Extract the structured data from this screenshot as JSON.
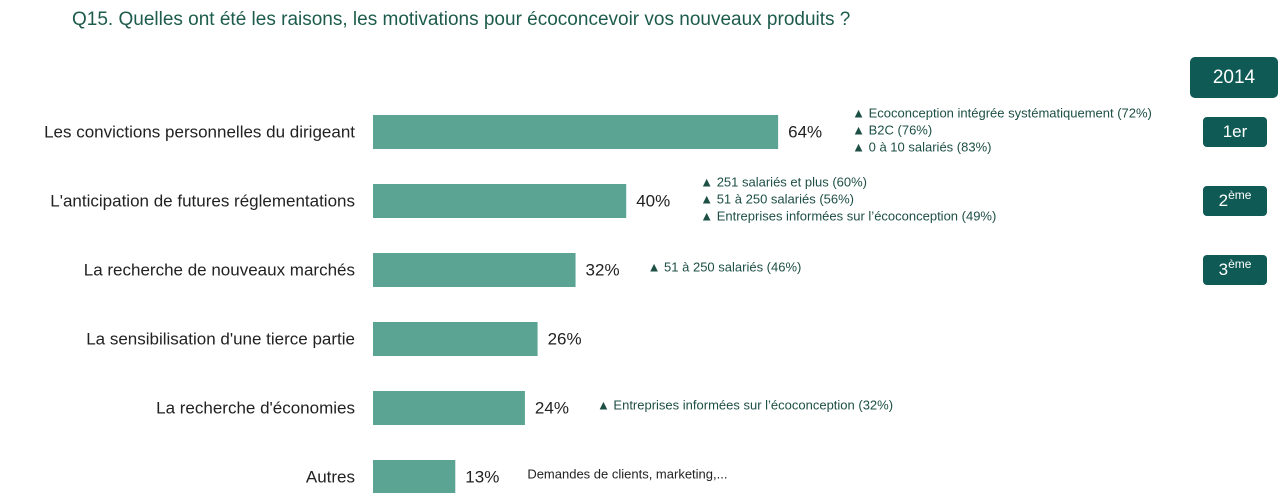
{
  "chart_data": {
    "type": "bar",
    "orientation": "horizontal",
    "title": "Q15. Quelles ont été les raisons, les motivations pour écoconcevoir vos nouveaux produits ?",
    "year": "2014",
    "categories": [
      "Les convictions personnelles du dirigeant",
      "L'anticipation de futures réglementations",
      "La recherche de nouveaux marchés",
      "La sensibilisation d'une tierce partie",
      "La recherche d'économies",
      "Autres"
    ],
    "values": [
      64,
      40,
      32,
      26,
      24,
      13
    ],
    "value_labels": [
      "64%",
      "40%",
      "32%",
      "26%",
      "24%",
      "13%"
    ],
    "color": "#5ba392",
    "annotations": [
      [
        "▲  Ecoconception intégrée systématiquement (72%)",
        "▲  B2C (76%)",
        "▲  0 à 10 salariés (83%)"
      ],
      [
        "▲  251 salariés et plus (60%)",
        "▲  51 à 250 salariés (56%)",
        "▲  Entreprises informées sur l’écoconception (49%)"
      ],
      [
        "▲  51 à 250 salariés (46%)"
      ],
      [],
      [
        "▲  Entreprises informées sur l’écoconception (32%)"
      ],
      [
        "Demandes de clients, marketing,..."
      ]
    ],
    "ranks": [
      {
        "main": "1er"
      },
      {
        "main": "2",
        "sup": "ème"
      },
      {
        "main": "3",
        "sup": "ème"
      }
    ]
  }
}
